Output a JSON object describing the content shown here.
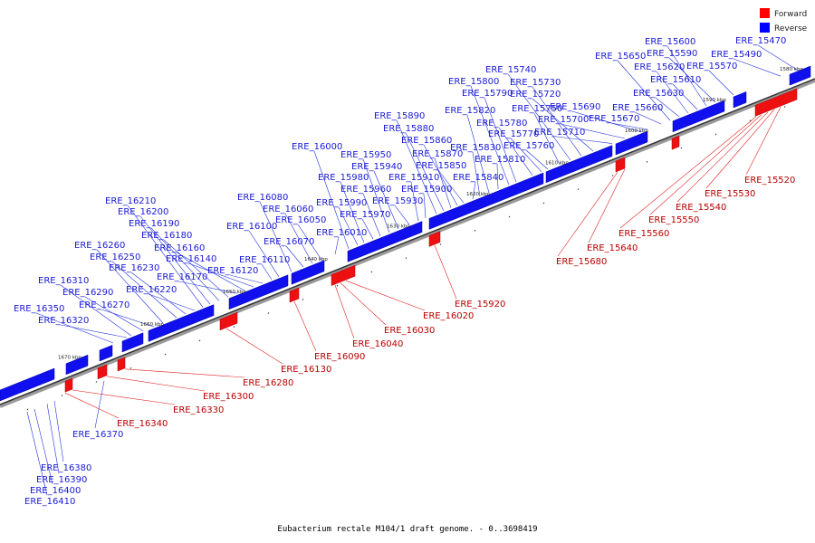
{
  "caption": "Eubacterium rectale M104/1 draft genome. - 0..3698419",
  "legend": {
    "forward": {
      "label": "Forward",
      "color": "#ff0000"
    },
    "reverse": {
      "label": "Reverse",
      "color": "#0000ff"
    }
  },
  "ticks": [
    "1580 kbp",
    "1590 kbp",
    "1600 kbp",
    "1610 kbp",
    "1620 kbp",
    "1630 kbp",
    "1640 kbp",
    "1650 kbp",
    "1660 kbp",
    "1670 kbp"
  ],
  "reverse_labels": [
    "ERE_15470",
    "ERE_15490",
    "ERE_15570",
    "ERE_15590",
    "ERE_15600",
    "ERE_15610",
    "ERE_15620",
    "ERE_15630",
    "ERE_15650",
    "ERE_15660",
    "ERE_15670",
    "ERE_15690",
    "ERE_15700",
    "ERE_15710",
    "ERE_15720",
    "ERE_15730",
    "ERE_15740",
    "ERE_15750",
    "ERE_15760",
    "ERE_15770",
    "ERE_15780",
    "ERE_15790",
    "ERE_15800",
    "ERE_15810",
    "ERE_15820",
    "ERE_15830",
    "ERE_15840",
    "ERE_15850",
    "ERE_15860",
    "ERE_15870",
    "ERE_15880",
    "ERE_15890",
    "ERE_15900",
    "ERE_15910",
    "ERE_15930",
    "ERE_15940",
    "ERE_15950",
    "ERE_15960",
    "ERE_15970",
    "ERE_15980",
    "ERE_15990",
    "ERE_16000",
    "ERE_16010",
    "ERE_16050",
    "ERE_16060",
    "ERE_16070",
    "ERE_16080",
    "ERE_16100",
    "ERE_16110",
    "ERE_16120",
    "ERE_16140",
    "ERE_16160",
    "ERE_16170",
    "ERE_16180",
    "ERE_16190",
    "ERE_16200",
    "ERE_16210",
    "ERE_16220",
    "ERE_16230",
    "ERE_16250",
    "ERE_16260",
    "ERE_16270",
    "ERE_16290",
    "ERE_16310",
    "ERE_16320",
    "ERE_16350",
    "ERE_16370",
    "ERE_16380",
    "ERE_16390",
    "ERE_16400",
    "ERE_16410"
  ],
  "forward_labels": [
    "ERE_15520",
    "ERE_15530",
    "ERE_15540",
    "ERE_15550",
    "ERE_15560",
    "ERE_15640",
    "ERE_15680",
    "ERE_15920",
    "ERE_16020",
    "ERE_16030",
    "ERE_16040",
    "ERE_16090",
    "ERE_16130",
    "ERE_16280",
    "ERE_16300",
    "ERE_16330",
    "ERE_16340"
  ]
}
